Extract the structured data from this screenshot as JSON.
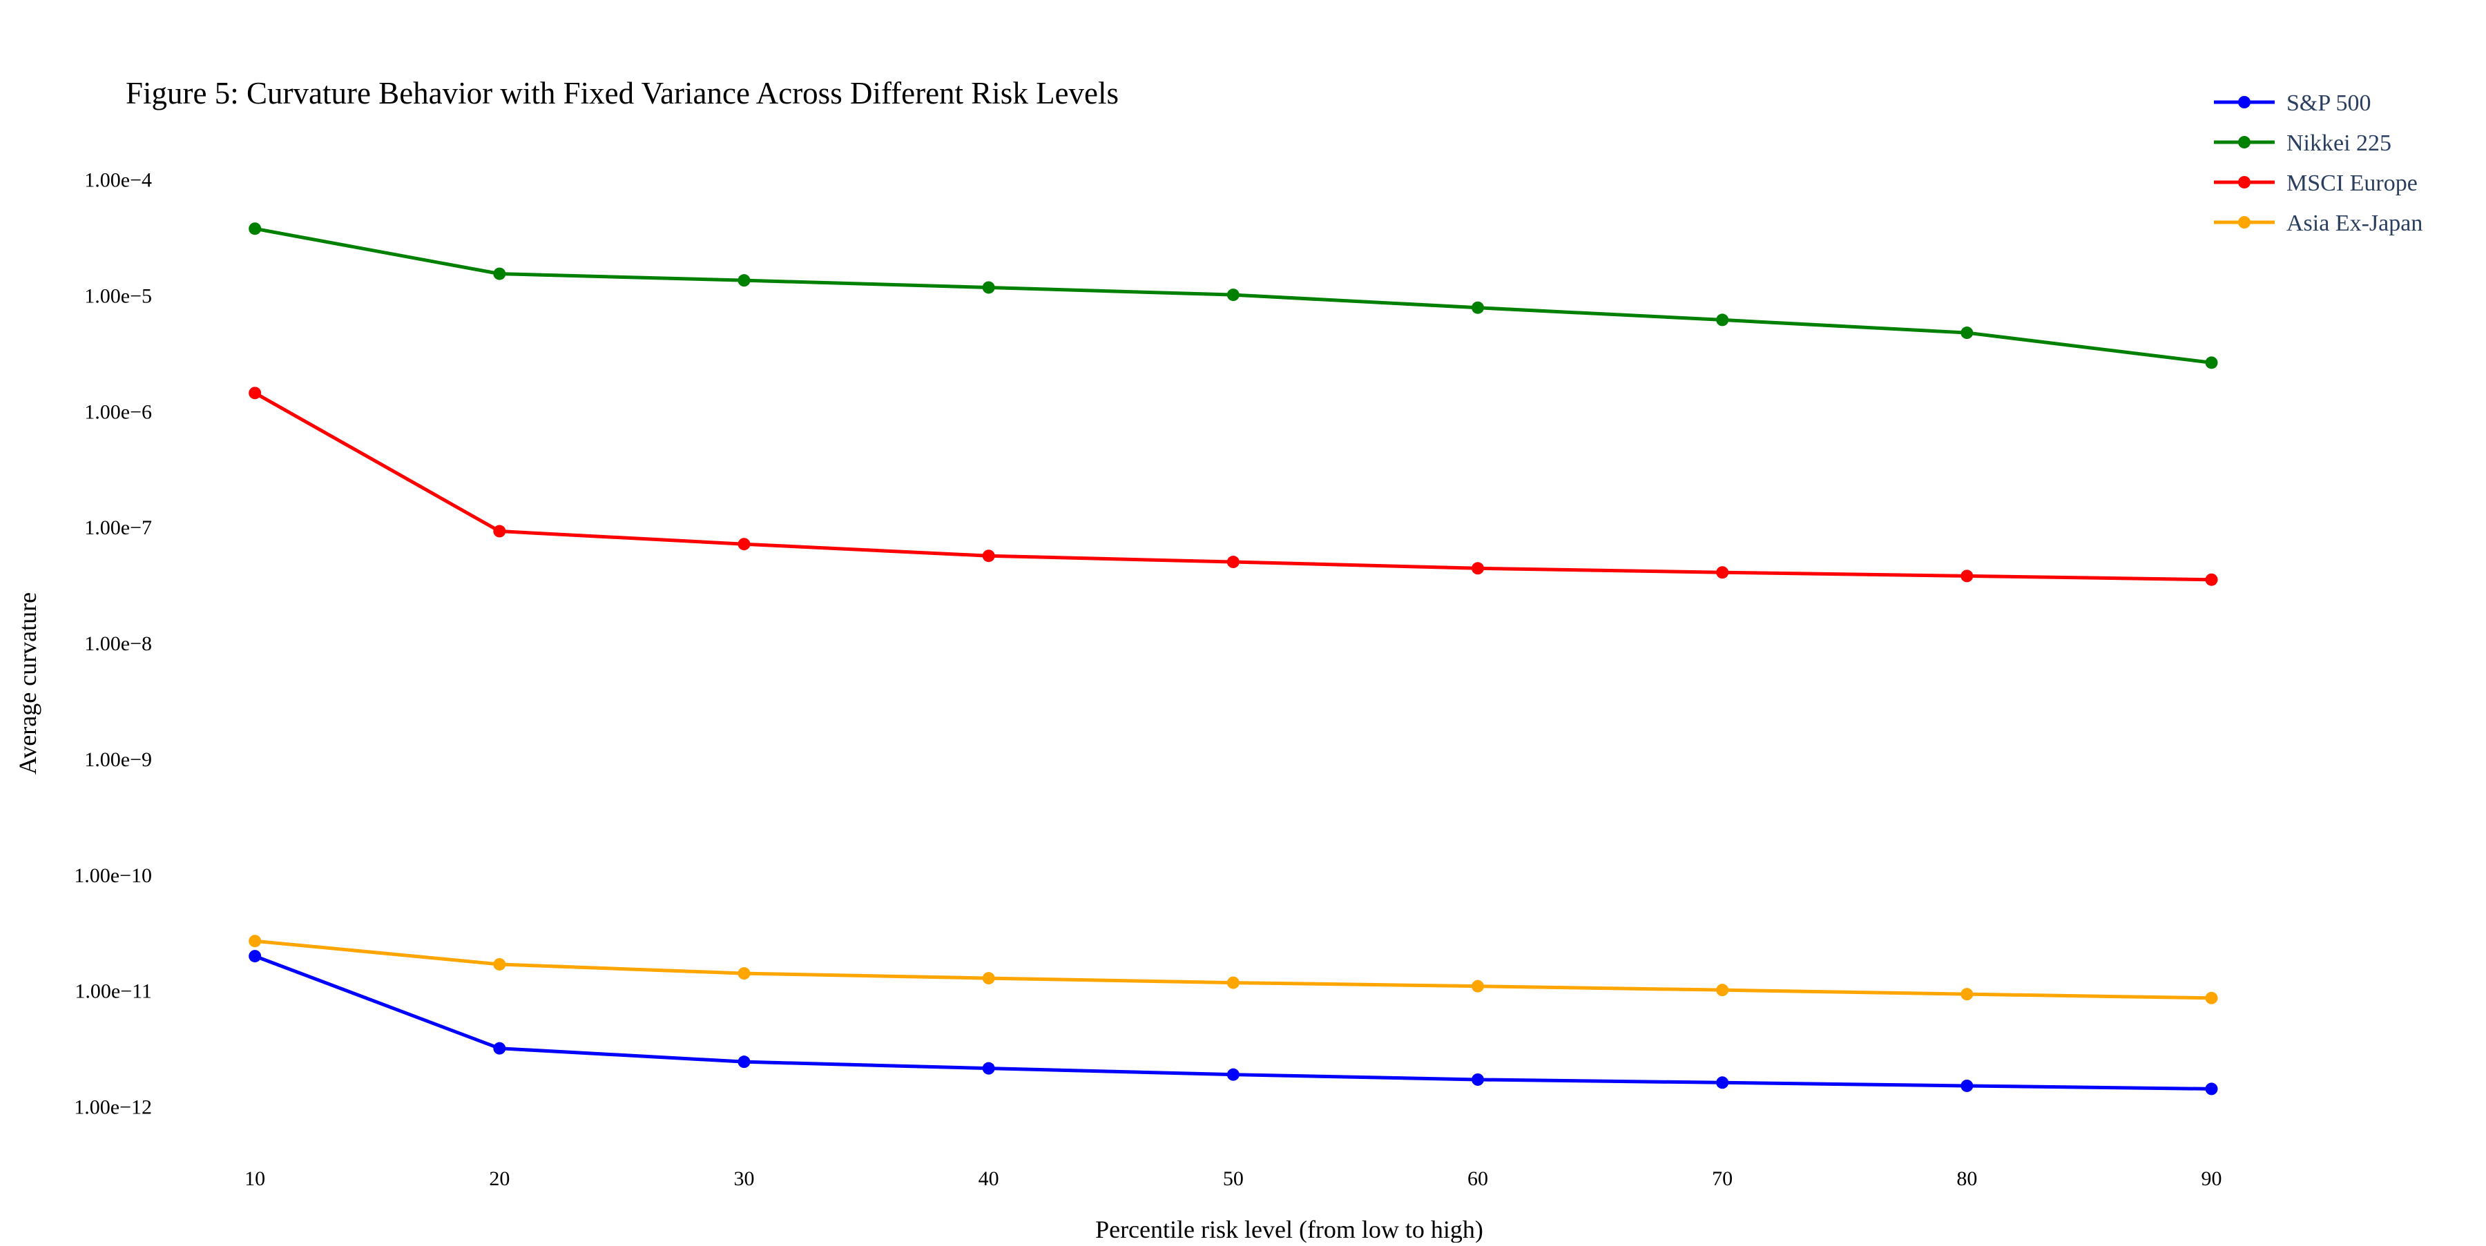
{
  "chart_data": {
    "type": "line",
    "title": "Figure 5: Curvature Behavior with Fixed Variance Across Different Risk Levels",
    "xlabel": "Percentile risk level (from low to high)",
    "ylabel": "Average curvature",
    "x": [
      10,
      20,
      30,
      40,
      50,
      60,
      70,
      80,
      90
    ],
    "x_tick_labels": [
      "10",
      "20",
      "30",
      "40",
      "50",
      "60",
      "70",
      "80",
      "90"
    ],
    "y_scale": "log",
    "y_ticks": [
      0.0001,
      1e-05,
      1e-06,
      1e-07,
      1e-08,
      1e-09,
      1e-10,
      1e-11,
      1e-12
    ],
    "y_tick_labels": [
      "1.00e−4",
      "1.00e−5",
      "1.00e−6",
      "1.00e−7",
      "1.00e−8",
      "1.00e−9",
      "1.00e−10",
      "1.00e−11",
      "1.00e−12"
    ],
    "ylim": [
      3.5e-13,
      0.00023
    ],
    "xlim": [
      2.4,
      98.4
    ],
    "grid": false,
    "legend_position": "top-right",
    "series": [
      {
        "name": "S&P 500",
        "color": "#0000ff",
        "values": [
          2e-11,
          3.2e-12,
          2.45e-12,
          2.15e-12,
          1.9e-12,
          1.72e-12,
          1.62e-12,
          1.52e-12,
          1.43e-12
        ]
      },
      {
        "name": "Nikkei 225",
        "color": "#008000",
        "values": [
          3.8e-05,
          1.55e-05,
          1.36e-05,
          1.18e-05,
          1.02e-05,
          7.9e-06,
          6.2e-06,
          4.8e-06,
          2.65e-06
        ]
      },
      {
        "name": "MSCI Europe",
        "color": "#ff0000",
        "values": [
          1.45e-06,
          9.3e-08,
          7.2e-08,
          5.7e-08,
          5.05e-08,
          4.45e-08,
          4.1e-08,
          3.82e-08,
          3.55e-08
        ]
      },
      {
        "name": "Asia Ex-Japan",
        "color": "#ffa500",
        "values": [
          2.7e-11,
          1.7e-11,
          1.42e-11,
          1.29e-11,
          1.18e-11,
          1.1e-11,
          1.02e-11,
          9.4e-12,
          8.7e-12
        ]
      }
    ]
  }
}
